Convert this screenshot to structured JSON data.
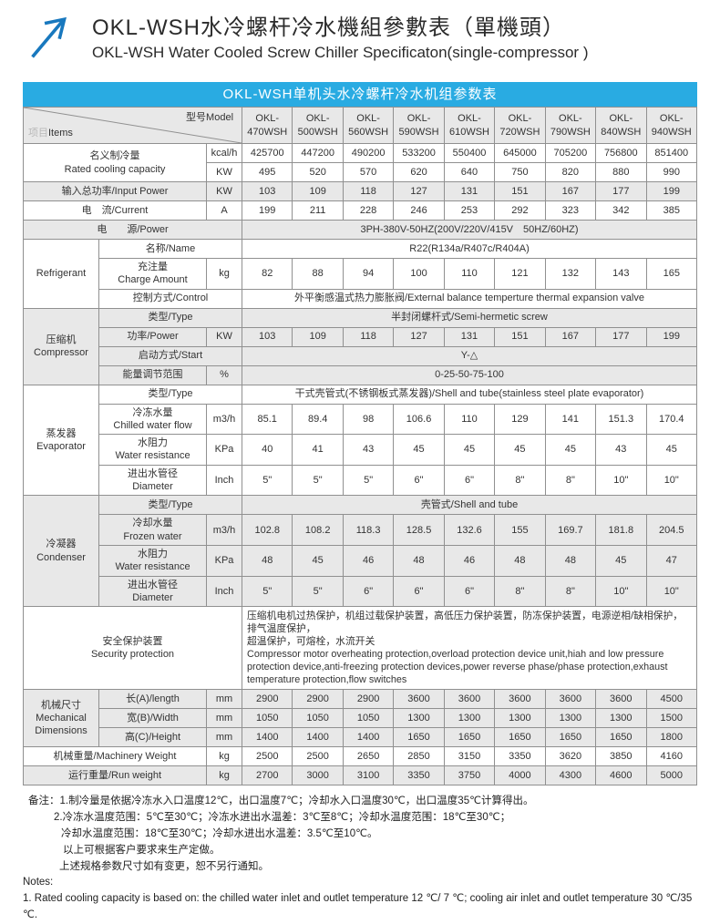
{
  "header": {
    "title_zh": "OKL-WSH水冷螺杆冷水機組參數表（單機頭）",
    "title_en": "OKL-WSH Water Cooled Screw Chiller Specificaton(single-compressor )"
  },
  "banner": {
    "text": "OKL-WSH单机头水冷螺杆冷水机组参数表"
  },
  "colors": {
    "banner_blue": "#29abe2",
    "arrow_blue": "#1878be",
    "row_gray": "#e8e8e8",
    "border_gray": "#909090"
  },
  "table": {
    "corner": {
      "items_zh": "项目",
      "items_en": "Items",
      "model_label": "型号Model"
    },
    "rows": [
      {
        "cls": "head",
        "bg": "g",
        "cells": [
          {
            "corner": true,
            "cs": 3,
            "name": "corner-cell"
          },
          {
            "t": "OKL-\n470WSH",
            "th": true,
            "name": "model-header"
          },
          {
            "t": "OKL-\n500WSH",
            "th": true,
            "name": "model-header"
          },
          {
            "t": "OKL-\n560WSH",
            "th": true,
            "name": "model-header"
          },
          {
            "t": "OKL-\n590WSH",
            "th": true,
            "name": "model-header"
          },
          {
            "t": "OKL-\n610WSH",
            "th": true,
            "name": "model-header"
          },
          {
            "t": "OKL-\n720WSH",
            "th": true,
            "name": "model-header"
          },
          {
            "t": "OKL-\n790WSH",
            "th": true,
            "name": "model-header"
          },
          {
            "t": "OKL-\n840WSH",
            "th": true,
            "name": "model-header"
          },
          {
            "t": "OKL-\n940WSH",
            "th": true,
            "name": "model-header"
          }
        ]
      },
      {
        "bg": "w",
        "cells": [
          {
            "t": "名义制冷量\nRated cooling capacity",
            "cs": 2,
            "rs": 2,
            "name": "row-label"
          },
          {
            "t": "kcal/h",
            "name": "unit-cell"
          },
          {
            "t": "425700"
          },
          {
            "t": "447200"
          },
          {
            "t": "490200"
          },
          {
            "t": "533200"
          },
          {
            "t": "550400"
          },
          {
            "t": "645000"
          },
          {
            "t": "705200"
          },
          {
            "t": "756800"
          },
          {
            "t": "851400"
          }
        ]
      },
      {
        "bg": "w",
        "cells": [
          {
            "t": "KW",
            "name": "unit-cell"
          },
          {
            "t": "495"
          },
          {
            "t": "520"
          },
          {
            "t": "570"
          },
          {
            "t": "620"
          },
          {
            "t": "640"
          },
          {
            "t": "750"
          },
          {
            "t": "820"
          },
          {
            "t": "880"
          },
          {
            "t": "990"
          }
        ]
      },
      {
        "bg": "g",
        "cells": [
          {
            "t": "输入总功率/Input Power",
            "cs": 2,
            "name": "row-label"
          },
          {
            "t": "KW",
            "name": "unit-cell"
          },
          {
            "t": "103"
          },
          {
            "t": "109"
          },
          {
            "t": "118"
          },
          {
            "t": "127"
          },
          {
            "t": "131"
          },
          {
            "t": "151"
          },
          {
            "t": "167"
          },
          {
            "t": "177"
          },
          {
            "t": "199"
          }
        ]
      },
      {
        "bg": "w",
        "cells": [
          {
            "t": "电　流/Current",
            "cs": 2,
            "name": "row-label"
          },
          {
            "t": "A",
            "name": "unit-cell"
          },
          {
            "t": "199"
          },
          {
            "t": "211"
          },
          {
            "t": "228"
          },
          {
            "t": "246"
          },
          {
            "t": "253"
          },
          {
            "t": "292"
          },
          {
            "t": "323"
          },
          {
            "t": "342"
          },
          {
            "t": "385"
          }
        ]
      },
      {
        "bg": "g",
        "cells": [
          {
            "t": "电　　源/Power",
            "cs": 3,
            "name": "row-label"
          },
          {
            "t": "3PH-380V-50HZ(200V/220V/415V　50HZ/60HZ)",
            "cs": 9,
            "name": "span-value"
          }
        ]
      },
      {
        "bg": "w",
        "cells": [
          {
            "t": "Refrigerant",
            "rs": 3,
            "name": "group-label"
          },
          {
            "t": "名称/Name",
            "cs": 2,
            "name": "row-label"
          },
          {
            "t": "R22(R134a/R407c/R404A)",
            "cs": 9,
            "name": "span-value"
          }
        ]
      },
      {
        "bg": "w",
        "cells": [
          {
            "t": "充注量\nCharge Amount",
            "name": "row-label"
          },
          {
            "t": "kg",
            "name": "unit-cell"
          },
          {
            "t": "82"
          },
          {
            "t": "88"
          },
          {
            "t": "94"
          },
          {
            "t": "100"
          },
          {
            "t": "110"
          },
          {
            "t": "121"
          },
          {
            "t": "132"
          },
          {
            "t": "143"
          },
          {
            "t": "165"
          }
        ]
      },
      {
        "bg": "w",
        "cells": [
          {
            "t": "控制方式/Control",
            "cs": 2,
            "name": "row-label"
          },
          {
            "t": "外平衡感温式热力膨胀阀/External balance temperture thermal expansion valve",
            "cs": 9,
            "name": "span-value"
          }
        ]
      },
      {
        "bg": "g",
        "cells": [
          {
            "t": "压缩机\nCompressor",
            "rs": 4,
            "name": "group-label"
          },
          {
            "t": "类型/Type",
            "cs": 2,
            "name": "row-label"
          },
          {
            "t": "半封闭螺杆式/Semi-hermetic screw",
            "cs": 9,
            "name": "span-value"
          }
        ]
      },
      {
        "bg": "g",
        "cells": [
          {
            "t": "功率/Power",
            "name": "row-label"
          },
          {
            "t": "KW",
            "name": "unit-cell"
          },
          {
            "t": "103"
          },
          {
            "t": "109"
          },
          {
            "t": "118"
          },
          {
            "t": "127"
          },
          {
            "t": "131"
          },
          {
            "t": "151"
          },
          {
            "t": "167"
          },
          {
            "t": "177"
          },
          {
            "t": "199"
          }
        ]
      },
      {
        "bg": "g",
        "cells": [
          {
            "t": "启动方式/Start",
            "cs": 2,
            "name": "row-label"
          },
          {
            "t": "Y-△",
            "cs": 9,
            "name": "span-value"
          }
        ]
      },
      {
        "bg": "g",
        "cells": [
          {
            "t": "能量调节范围",
            "name": "row-label"
          },
          {
            "t": "%",
            "name": "unit-cell"
          },
          {
            "t": "0-25-50-75-100",
            "cs": 9,
            "name": "span-value"
          }
        ]
      },
      {
        "bg": "w",
        "cells": [
          {
            "t": "蒸发器\nEvaporator",
            "rs": 4,
            "name": "group-label"
          },
          {
            "t": "类型/Type",
            "cs": 2,
            "name": "row-label"
          },
          {
            "t": "干式壳管式(不锈钢板式蒸发器)/Shell and tube(stainless steel plate evaporator)",
            "cs": 9,
            "name": "span-value"
          }
        ]
      },
      {
        "bg": "w",
        "cells": [
          {
            "t": "冷冻水量\nChilled water flow",
            "name": "row-label"
          },
          {
            "t": "m3/h",
            "name": "unit-cell"
          },
          {
            "t": "85.1"
          },
          {
            "t": "89.4"
          },
          {
            "t": "98"
          },
          {
            "t": "106.6"
          },
          {
            "t": "110"
          },
          {
            "t": "129"
          },
          {
            "t": "141"
          },
          {
            "t": "151.3"
          },
          {
            "t": "170.4"
          }
        ]
      },
      {
        "bg": "w",
        "cells": [
          {
            "t": "水阻力\nWater resistance",
            "name": "row-label"
          },
          {
            "t": "KPa",
            "name": "unit-cell"
          },
          {
            "t": "40"
          },
          {
            "t": "41"
          },
          {
            "t": "43"
          },
          {
            "t": "45"
          },
          {
            "t": "45"
          },
          {
            "t": "45"
          },
          {
            "t": "45"
          },
          {
            "t": "43"
          },
          {
            "t": "45"
          }
        ]
      },
      {
        "bg": "w",
        "cells": [
          {
            "t": "进出水管径\nDiameter",
            "name": "row-label"
          },
          {
            "t": "Inch",
            "name": "unit-cell"
          },
          {
            "t": "5\""
          },
          {
            "t": "5\""
          },
          {
            "t": "5\""
          },
          {
            "t": "6\""
          },
          {
            "t": "6\""
          },
          {
            "t": "8\""
          },
          {
            "t": "8\""
          },
          {
            "t": "10\""
          },
          {
            "t": "10\""
          }
        ]
      },
      {
        "bg": "g",
        "cells": [
          {
            "t": "冷凝器\nCondenser",
            "rs": 4,
            "name": "group-label"
          },
          {
            "t": "类型/Type",
            "cs": 2,
            "name": "row-label"
          },
          {
            "t": "壳管式/Shell and tube",
            "cs": 9,
            "name": "span-value"
          }
        ]
      },
      {
        "bg": "g",
        "cells": [
          {
            "t": "冷却水量\nFrozen water",
            "name": "row-label"
          },
          {
            "t": "m3/h",
            "name": "unit-cell"
          },
          {
            "t": "102.8"
          },
          {
            "t": "108.2"
          },
          {
            "t": "118.3"
          },
          {
            "t": "128.5"
          },
          {
            "t": "132.6"
          },
          {
            "t": "155"
          },
          {
            "t": "169.7"
          },
          {
            "t": "181.8"
          },
          {
            "t": "204.5"
          }
        ]
      },
      {
        "bg": "g",
        "cells": [
          {
            "t": "水阻力\nWater resistance",
            "name": "row-label"
          },
          {
            "t": "KPa",
            "name": "unit-cell"
          },
          {
            "t": "48"
          },
          {
            "t": "45"
          },
          {
            "t": "46"
          },
          {
            "t": "48"
          },
          {
            "t": "46"
          },
          {
            "t": "48"
          },
          {
            "t": "48"
          },
          {
            "t": "45"
          },
          {
            "t": "47"
          }
        ]
      },
      {
        "bg": "g",
        "cells": [
          {
            "t": "进出水管径\nDiameter",
            "name": "row-label"
          },
          {
            "t": "Inch",
            "name": "unit-cell"
          },
          {
            "t": "5\""
          },
          {
            "t": "5\""
          },
          {
            "t": "6\""
          },
          {
            "t": "6\""
          },
          {
            "t": "6\""
          },
          {
            "t": "8\""
          },
          {
            "t": "8\""
          },
          {
            "t": "10\""
          },
          {
            "t": "10\""
          }
        ]
      },
      {
        "bg": "w",
        "cells": [
          {
            "t": "安全保护装置\nSecurity protection",
            "cs": 3,
            "name": "row-label"
          },
          {
            "t": "压缩机电机过热保护，机组过载保护装置，高低压力保护装置，防冻保护装置，电源逆相/缺相保护，排气温度保护，\n超温保护，可熔栓，水流开关\nCompressor motor overheating protection,overload protection device unit,hiah and low pressure protection device,anti-freezing protection devices,power reverse phase/phase protection,exhaust temperature protection,flow switches",
            "cs": 9,
            "cls": "left",
            "name": "security-text"
          }
        ]
      },
      {
        "bg": "g",
        "cells": [
          {
            "t": "机械尺寸\nMechanical\nDimensions",
            "rs": 3,
            "name": "group-label"
          },
          {
            "t": "长(A)/length",
            "name": "row-label"
          },
          {
            "t": "mm",
            "name": "unit-cell"
          },
          {
            "t": "2900"
          },
          {
            "t": "2900"
          },
          {
            "t": "2900"
          },
          {
            "t": "3600"
          },
          {
            "t": "3600"
          },
          {
            "t": "3600"
          },
          {
            "t": "3600"
          },
          {
            "t": "3600"
          },
          {
            "t": "4500"
          }
        ]
      },
      {
        "bg": "g",
        "cells": [
          {
            "t": "宽(B)/Width",
            "name": "row-label"
          },
          {
            "t": "mm",
            "name": "unit-cell"
          },
          {
            "t": "1050"
          },
          {
            "t": "1050"
          },
          {
            "t": "1050"
          },
          {
            "t": "1300"
          },
          {
            "t": "1300"
          },
          {
            "t": "1300"
          },
          {
            "t": "1300"
          },
          {
            "t": "1300"
          },
          {
            "t": "1500"
          }
        ]
      },
      {
        "bg": "g",
        "cells": [
          {
            "t": "高(C)/Height",
            "name": "row-label"
          },
          {
            "t": "mm",
            "name": "unit-cell"
          },
          {
            "t": "1400"
          },
          {
            "t": "1400"
          },
          {
            "t": "1400"
          },
          {
            "t": "1650"
          },
          {
            "t": "1650"
          },
          {
            "t": "1650"
          },
          {
            "t": "1650"
          },
          {
            "t": "1650"
          },
          {
            "t": "1800"
          }
        ]
      },
      {
        "bg": "w",
        "cells": [
          {
            "t": "机械重量/Machinery Weight",
            "cs": 2,
            "name": "row-label"
          },
          {
            "t": "kg",
            "name": "unit-cell"
          },
          {
            "t": "2500"
          },
          {
            "t": "2500"
          },
          {
            "t": "2650"
          },
          {
            "t": "2850"
          },
          {
            "t": "3150"
          },
          {
            "t": "3350"
          },
          {
            "t": "3620"
          },
          {
            "t": "3850"
          },
          {
            "t": "4160"
          }
        ]
      },
      {
        "bg": "g",
        "cells": [
          {
            "t": "运行重量/Run weight",
            "cs": 2,
            "name": "row-label"
          },
          {
            "t": "kg",
            "name": "unit-cell"
          },
          {
            "t": "2700"
          },
          {
            "t": "3000"
          },
          {
            "t": "3100"
          },
          {
            "t": "3350"
          },
          {
            "t": "3750"
          },
          {
            "t": "4000"
          },
          {
            "t": "4300"
          },
          {
            "t": "4600"
          },
          {
            "t": "5000"
          }
        ]
      }
    ]
  },
  "notes": {
    "zh_lines": [
      "备注：1.制冷量是依据冷冻水入口温度12℃，出口温度7℃；冷却水入口温度30℃，出口温度35℃计算得出。",
      "2.冷冻水温度范围：5℃至30℃；冷冻水进出水温差：3℃至8℃；冷却水温度范围：18℃至30℃；",
      "冷却水温度范围：18℃至30℃；冷却水进出水温差：3.5℃至10℃。",
      "以上可根据客户要求来生产定做。",
      "上述规格参数尺寸如有变更，恕不另行通知。"
    ],
    "en_header": "Notes:",
    "en_line": "1. Rated cooling capacity is based on: the chilled water inlet and outlet temperature 12 ℃/ 7 ℃; cooling air inlet and outlet temperature 30 ℃/35 ℃."
  }
}
